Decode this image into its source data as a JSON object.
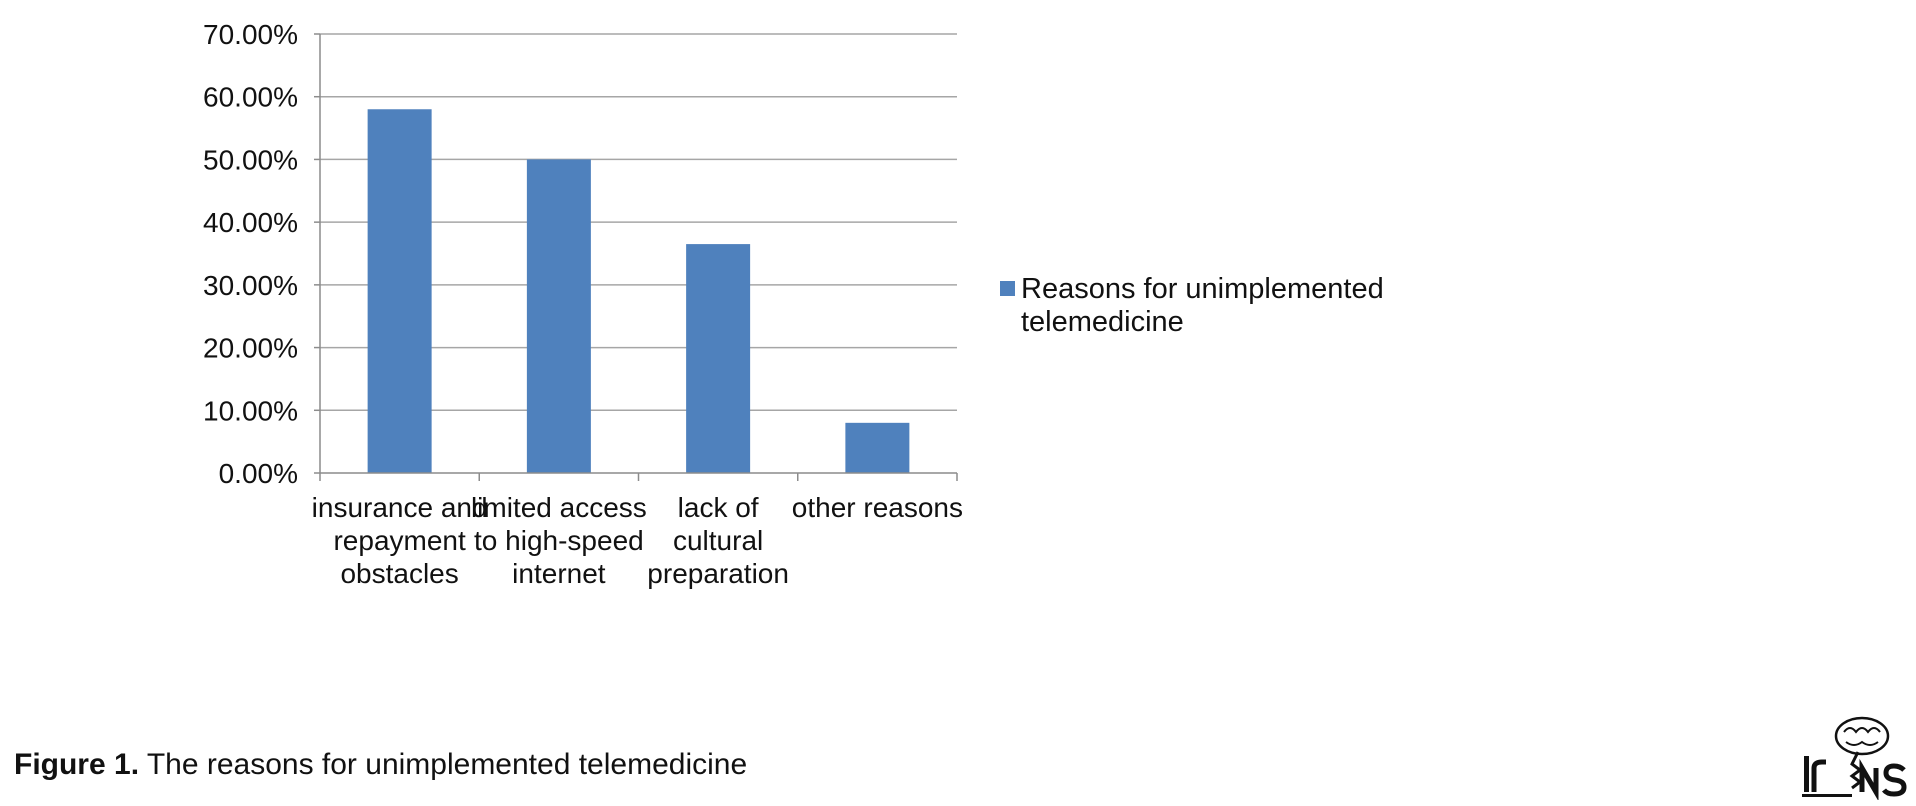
{
  "chart_data": {
    "type": "bar",
    "categories": [
      [
        "insurance and",
        "repayment",
        "obstacles"
      ],
      [
        "limited access",
        "to high-speed",
        "internet"
      ],
      [
        "lack of",
        "cultural",
        "preparation"
      ],
      [
        "other reasons"
      ]
    ],
    "series": [
      {
        "name": "Reasons for unimplemented telemedicine",
        "values": [
          58.0,
          50.0,
          36.5,
          8.0
        ],
        "color": "#4f81bd"
      }
    ],
    "legend_lines": [
      "Reasons for unimplemented",
      "telemedicine"
    ],
    "ylim": [
      0,
      70
    ],
    "yticks": [
      0,
      10,
      20,
      30,
      40,
      50,
      60,
      70
    ],
    "ytick_labels": [
      "0.00%",
      "10.00%",
      "20.00%",
      "30.00%",
      "40.00%",
      "50.00%",
      "60.00%",
      "70.00%"
    ],
    "grid": true,
    "legend_position": "right",
    "title": "",
    "xlabel": "",
    "ylabel": ""
  },
  "caption": {
    "label": "Figure 1.",
    "text": " The reasons for unimplemented telemedicine"
  },
  "logo": {
    "text": "IrJNS"
  }
}
